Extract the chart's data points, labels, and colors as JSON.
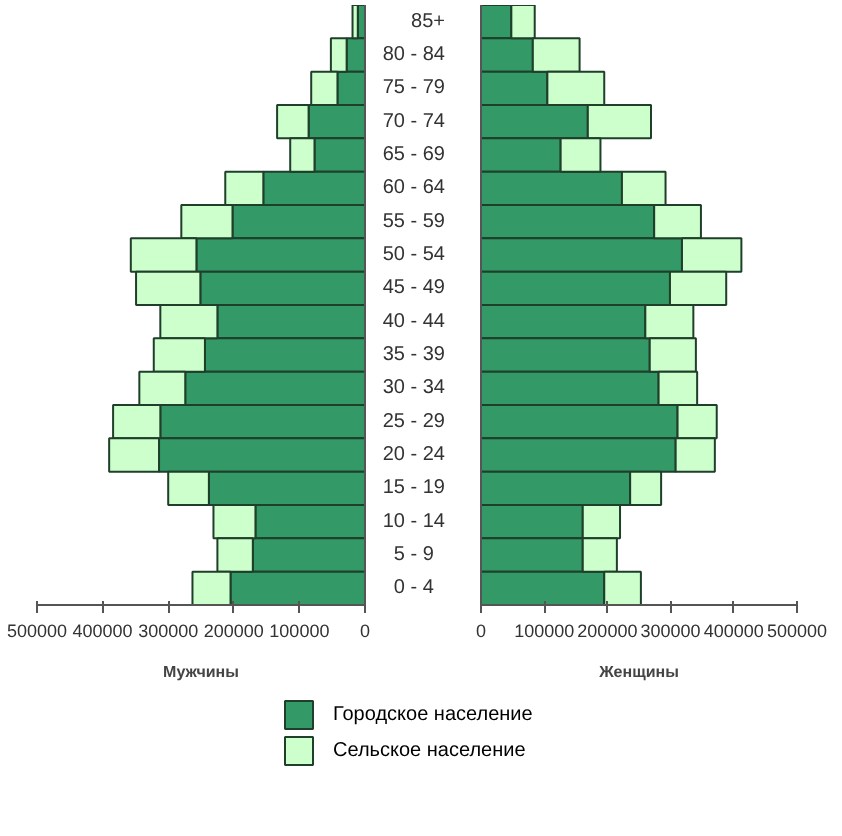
{
  "chart_data": [
    {
      "type": "bar",
      "orientation": "horizontal",
      "stacked": true,
      "xlabel": "Мужчины",
      "categories": [
        null,
        null,
        null,
        null,
        null,
        null,
        null,
        null,
        null,
        null,
        null,
        null,
        null,
        null,
        null,
        null,
        null,
        null
      ],
      "tick_labels": "x",
      "xlim": [
        500000,
        0
      ],
      "xticks": [
        500000,
        400000,
        300000,
        200000,
        100000,
        0
      ],
      "series": [
        {
          "color": "#339966",
          "values": [
            11000,
            28000,
            42000,
            86000,
            77000,
            155000,
            202000,
            257000,
            251000,
            225000,
            244000,
            274000,
            312000,
            314000,
            238000,
            167000,
            171000,
            205000
          ]
        },
        {
          "color": "#ccffcc",
          "values": [
            8000,
            24000,
            40000,
            48000,
            37000,
            58000,
            78000,
            100000,
            98000,
            87000,
            78000,
            70000,
            72000,
            76000,
            62000,
            64000,
            54000,
            58000
          ]
        }
      ]
    },
    {
      "type": "bar",
      "orientation": "horizontal",
      "stacked": true,
      "xlabel": "Женщины",
      "categories": [
        "85+",
        "80 - 84",
        "75 - 79",
        "70 - 74",
        "65 - 69",
        "60 - 64",
        "55 - 59",
        "50 - 54",
        "45 - 49",
        "40 - 44",
        "35 - 39",
        "30 - 34",
        "25 - 29",
        "20 - 24",
        "15 - 19",
        "10 - 14",
        "5  -  9",
        "0  -  4"
      ],
      "xlim": [
        0,
        500000
      ],
      "xticks": [
        0,
        100000,
        200000,
        300000,
        400000,
        500000
      ],
      "legend": "bottom",
      "series": [
        {
          "name": "Городское население",
          "color": "#339966",
          "values": [
            48000,
            82000,
            105000,
            169000,
            126000,
            223000,
            274000,
            318000,
            299000,
            260000,
            267000,
            281000,
            311000,
            308000,
            236000,
            161000,
            161000,
            195000
          ]
        },
        {
          "name": "Сельское   население",
          "color": "#ccffcc",
          "values": [
            37000,
            74000,
            90000,
            100000,
            63000,
            69000,
            74000,
            94000,
            89000,
            76000,
            73000,
            61000,
            62000,
            62000,
            49000,
            59000,
            54000,
            58000
          ]
        }
      ]
    }
  ]
}
